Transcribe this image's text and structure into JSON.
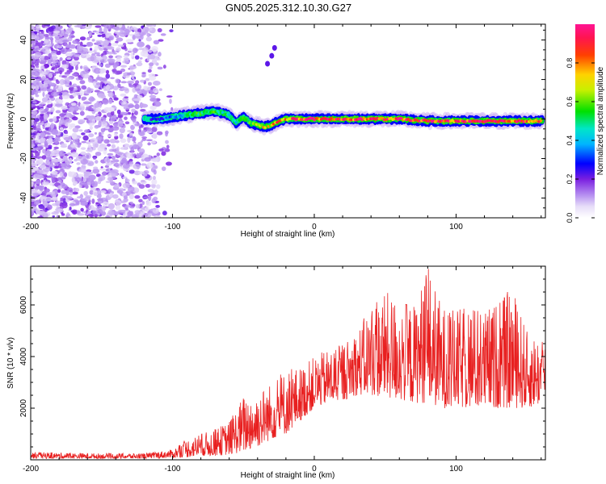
{
  "figure_title": "GN05.2025.312.10.30.G27",
  "chart_data": [
    {
      "type": "heatmap",
      "panel": "top",
      "title": "GN05.2025.312.10.30.G27",
      "xlabel": "Height of straight line (km)",
      "ylabel": "Frequency (Hz)",
      "xlim": [
        -200,
        163
      ],
      "ylim": [
        -50,
        48
      ],
      "xticks": [
        -200,
        -100,
        0,
        100
      ],
      "yticks": [
        -40,
        -20,
        0,
        20,
        40
      ],
      "colorbar": {
        "label": "Normalized spectral amplitude",
        "range": [
          0,
          1
        ],
        "ticks": [
          "0.0",
          "0.2",
          "0.4",
          "0.6",
          "0.8"
        ],
        "tick_values": [
          0.0,
          0.2,
          0.4,
          0.6,
          0.8
        ],
        "colors": [
          "#ffffff",
          "#c8b4f0",
          "#8a2be2",
          "#0000ff",
          "#00c8ff",
          "#00e000",
          "#e0e000",
          "#ff3000",
          "#ff1493"
        ]
      },
      "trace": {
        "description": "Main signal ridge frequency vs height",
        "x": [
          -120,
          -110,
          -100,
          -90,
          -80,
          -70,
          -60,
          -55,
          -50,
          -45,
          -40,
          -35,
          -30,
          -25,
          -20,
          -10,
          0,
          20,
          40,
          60,
          80,
          100,
          120,
          140,
          160
        ],
        "y": [
          0,
          0,
          1,
          2,
          3,
          4,
          2,
          -2,
          1,
          -2,
          -3,
          -4,
          -3,
          -1,
          0,
          0,
          0,
          0,
          0,
          0,
          -1,
          -1,
          -1,
          -1,
          -1
        ],
        "amplitude": [
          0.25,
          0.3,
          0.4,
          0.5,
          0.6,
          0.55,
          0.5,
          0.5,
          0.55,
          0.6,
          0.7,
          0.75,
          0.8,
          0.85,
          0.9,
          0.92,
          0.95,
          0.95,
          0.95,
          0.95,
          0.95,
          0.95,
          0.95,
          0.95,
          0.95
        ]
      },
      "secondary_blob": {
        "x": [
          -33,
          -30,
          -28
        ],
        "y": [
          28,
          32,
          36
        ]
      }
    },
    {
      "type": "line",
      "panel": "bottom",
      "xlabel": "Height of straight line (km)",
      "ylabel": "SNR (10 * v/v)",
      "xlim": [
        -200,
        163
      ],
      "ylim": [
        0,
        7500
      ],
      "xticks": [
        -200,
        -100,
        0,
        100
      ],
      "yticks": [
        2000,
        4000,
        6000
      ],
      "color": "#e82020",
      "envelope": {
        "description": "Approximate SNR envelope (noisy line oscillates between low and high)",
        "x": [
          -200,
          -150,
          -120,
          -100,
          -90,
          -80,
          -70,
          -60,
          -50,
          -40,
          -30,
          -20,
          -10,
          0,
          10,
          20,
          30,
          40,
          50,
          60,
          70,
          80,
          90,
          100,
          110,
          120,
          130,
          140,
          150,
          163
        ],
        "low": [
          50,
          50,
          50,
          80,
          100,
          150,
          150,
          200,
          300,
          500,
          800,
          1000,
          1500,
          2000,
          2200,
          2300,
          2500,
          2500,
          2400,
          2300,
          2200,
          2200,
          2000,
          2000,
          2000,
          2000,
          2000,
          2000,
          2000,
          2200
        ],
        "high": [
          300,
          250,
          250,
          400,
          800,
          1000,
          1200,
          1500,
          2500,
          2700,
          3000,
          3500,
          3600,
          4000,
          4300,
          4500,
          5000,
          6000,
          6500,
          6300,
          6000,
          7500,
          6000,
          5800,
          6000,
          5800,
          6200,
          6700,
          5000,
          4700
        ]
      },
      "series": [
        {
          "name": "SNR",
          "points_per_km": 4
        }
      ]
    }
  ]
}
